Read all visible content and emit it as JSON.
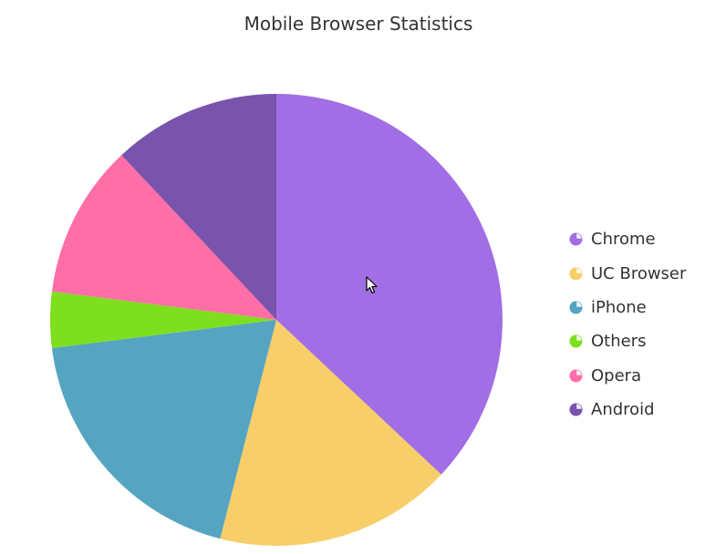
{
  "chart_data": {
    "type": "pie",
    "title": "Mobile Browser Statistics",
    "slices": [
      {
        "label": "Chrome",
        "value": 37,
        "color": "#A16EE5"
      },
      {
        "label": "UC Browser",
        "value": 17,
        "color": "#F7CE69"
      },
      {
        "label": "iPhone",
        "value": 19,
        "color": "#55A5C2"
      },
      {
        "label": "Others",
        "value": 4,
        "color": "#7DDF1E"
      },
      {
        "label": "Opera",
        "value": 11,
        "color": "#FF6EA6"
      },
      {
        "label": "Android",
        "value": 12,
        "color": "#7953AC"
      }
    ],
    "start_angle": "12 o'clock, clockwise",
    "legend_position": "right",
    "legend_marker": "pie-icon"
  }
}
